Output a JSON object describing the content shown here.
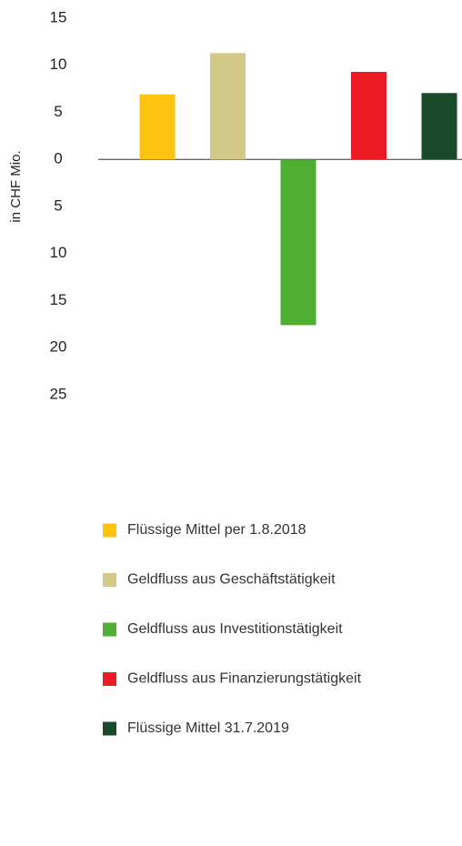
{
  "chart_data": {
    "type": "bar",
    "y_label": "in CHF Mio.",
    "categories": [
      "Flüssige Mittel per 1.8.2018",
      "Geldfluss aus Geschäftstätigkeit",
      "Geldfluss aus Investitionstätigkeit",
      "Geldfluss aus Finanzierungstätigkeit",
      "Flüssige Mittel 31.7.2019"
    ],
    "values": [
      6.9,
      11.3,
      -17.6,
      9.3,
      7.05
    ],
    "colors": [
      "#ffc20e",
      "#d3ca8a",
      "#4fae32",
      "#ed1c24",
      "#1b4a2b"
    ],
    "ylim": [
      -25,
      15
    ],
    "yticks": [
      15,
      10,
      5,
      0,
      {
        "value": -5,
        "label": "5"
      },
      {
        "value": -10,
        "label": "10"
      },
      {
        "value": -15,
        "label": "15"
      },
      {
        "value": -20,
        "label": "20"
      },
      {
        "value": -25,
        "label": "25"
      }
    ],
    "legend": "bottom"
  }
}
